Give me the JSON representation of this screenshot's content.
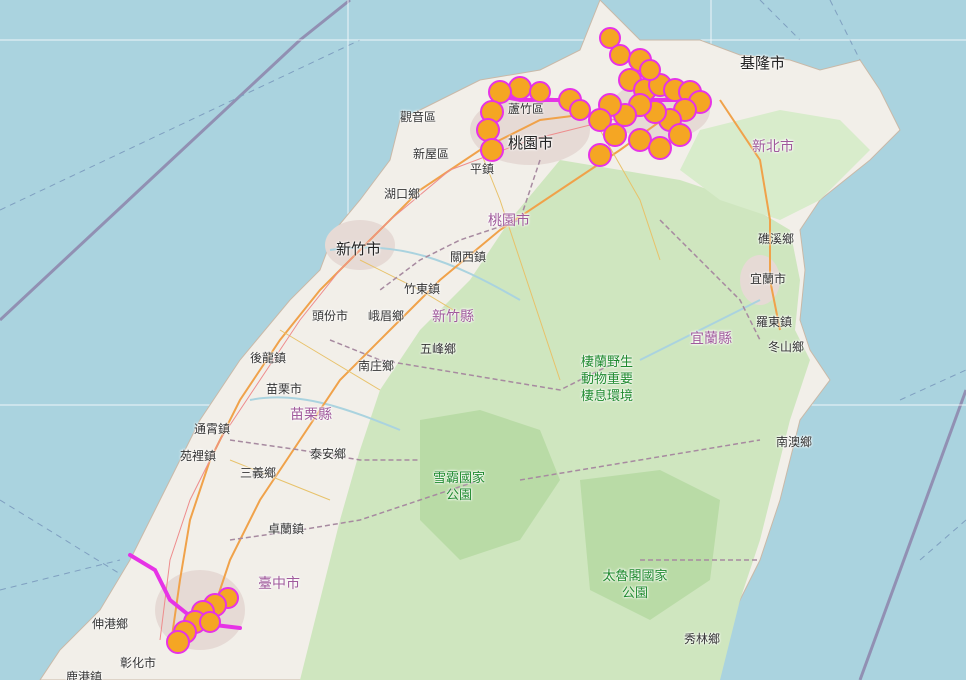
{
  "map": {
    "colors": {
      "sea": "#aad3df",
      "land": "#f2efe9",
      "mountain": "#d4e8c8",
      "forest": "#b7d8a6",
      "urban": "#e4d9d4",
      "boundary": "#a78aa0",
      "marker_fill": "#f5a623",
      "marker_stroke": "#e633e6",
      "track": "#e633e6"
    },
    "labels": {
      "keelung": "基隆市",
      "new_taipei": "新北市",
      "taoyuan_city": "桃園市",
      "taoyuan_county": "桃園市",
      "luzhu": "蘆竹區",
      "guanyin": "觀音區",
      "xinwu": "新屋區",
      "pingzhen": "平鎮",
      "hukou": "湖口鄉",
      "hsinchu_city": "新竹市",
      "guanxi": "關西鎮",
      "zhudong": "竹東鎮",
      "toufen": "頭份市",
      "emei": "峨眉鄉",
      "hsinchu_county": "新竹縣",
      "wufeng": "五峰鄉",
      "nanzhuang": "南庄鄉",
      "houlong": "後龍鎮",
      "miaoli_city": "苗栗市",
      "miaoli_county": "苗栗縣",
      "tongxiao": "通霄鎮",
      "yuanli": "苑裡鎮",
      "sanyi": "三義鄉",
      "taian": "泰安鄉",
      "zhuolan": "卓蘭鎮",
      "taichung_city": "臺中市",
      "shengang": "伸港鄉",
      "changhua_city": "彰化市",
      "lukang": "鹿港鎮",
      "jiaoxi": "礁溪鄉",
      "yilan_city": "宜蘭市",
      "yilan_county": "宜蘭縣",
      "luodong": "羅東鎮",
      "dongshan": "冬山鄉",
      "nanao": "南澳鄉",
      "xiulin": "秀林鄉",
      "wildlife_refuge": "棲蘭野生動物重要棲息環境",
      "shei_pa_park": "雪霸國家公園",
      "taroko_park": "太魯閣國家公園"
    }
  }
}
